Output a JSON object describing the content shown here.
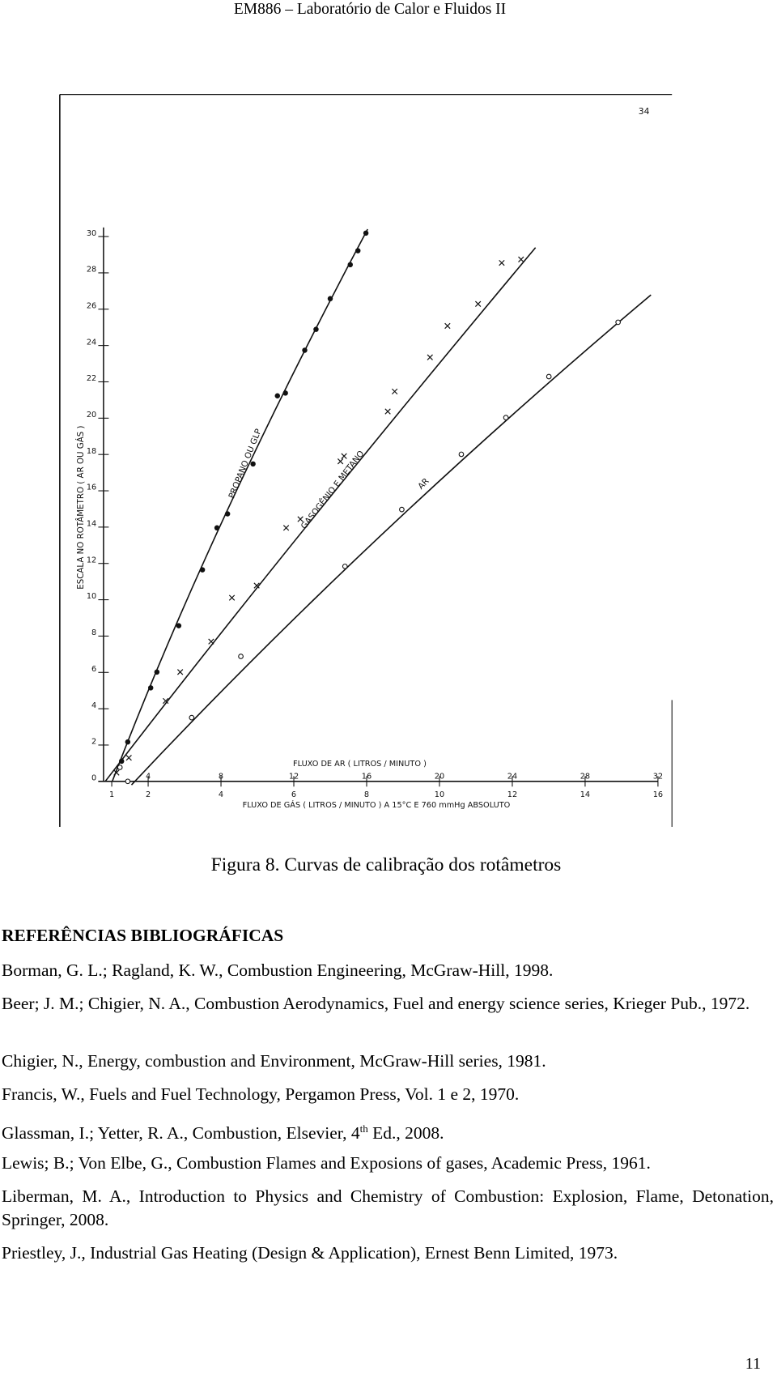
{
  "header": {
    "title": "EM886 – Laboratório de Calor e Fluidos II"
  },
  "chart_data": {
    "type": "scatter",
    "page_label": "34",
    "ylabel": "ESCALA NO ROTÂMETRO ( AR OU GÁS )",
    "xlabel": "FLUXO DE GÁS ( LITROS / MINUTO ) A 15°C E 760 mmHg ABSOLUTO",
    "x2label": "FLUXO DE AR ( LITROS / MINUTO )",
    "xlim": [
      0.75,
      16
    ],
    "xticks": [
      1,
      2,
      4,
      6,
      8,
      10,
      12,
      14,
      16
    ],
    "x2lim": [
      1.5,
      32
    ],
    "x2ticks": [
      4,
      8,
      12,
      16,
      20,
      24,
      28,
      32
    ],
    "ylim": [
      0,
      30.5
    ],
    "yticks": [
      0,
      2,
      4,
      6,
      8,
      10,
      12,
      14,
      16,
      18,
      20,
      22,
      24,
      26,
      28,
      30
    ],
    "color": "#111111",
    "series": [
      {
        "name": "PROPANO OU GLP",
        "marker": "dot",
        "x": [
          1.27,
          1.44,
          2.07,
          2.24,
          2.84,
          3.49,
          3.89,
          4.18,
          4.88,
          5.55,
          5.77,
          6.3,
          6.61,
          7.0,
          7.55,
          7.76,
          7.98
        ],
        "values": [
          1.11,
          2.17,
          5.15,
          6.02,
          8.57,
          11.65,
          13.96,
          14.73,
          17.48,
          21.23,
          21.38,
          23.74,
          24.89,
          26.58,
          28.45,
          29.22,
          30.19
        ]
      },
      {
        "name": "GASOGÊNIO E METANO",
        "marker": "cross",
        "x": [
          1.13,
          1.47,
          2.48,
          2.88,
          3.73,
          4.3,
          4.98,
          5.79,
          6.18,
          7.28,
          7.38,
          8.58,
          8.77,
          9.74,
          10.22,
          11.06,
          11.71,
          12.24
        ],
        "values": [
          0.48,
          1.3,
          4.43,
          6.02,
          7.7,
          10.11,
          10.78,
          13.96,
          14.44,
          17.62,
          17.91,
          20.37,
          21.47,
          23.35,
          25.08,
          26.29,
          28.55,
          28.74
        ]
      },
      {
        "name": "AR",
        "marker": "circle",
        "axis": "x2",
        "x": [
          2.45,
          2.88,
          6.39,
          9.09,
          14.81,
          17.93,
          21.2,
          23.65,
          26.01,
          29.81
        ],
        "values": [
          0.77,
          0,
          3.51,
          6.88,
          11.84,
          14.97,
          18.01,
          20.03,
          22.29,
          25.28
        ]
      }
    ]
  },
  "caption": "Figura 8. Curvas de calibração dos rotâmetros",
  "references": {
    "title": "REFERÊNCIAS BIBLIOGRÁFICAS",
    "items": [
      "Borman, G. L.; Ragland, K. W., Combustion Engineering, McGraw-Hill, 1998.",
      "Beer; J. M.; Chigier, N. A., Combustion Aerodynamics, Fuel and energy science series, Krieger Pub., 1972.",
      "Chigier, N., Energy, combustion and Environment, McGraw-Hill series, 1981.",
      "Francis, W., Fuels and Fuel Technology, Pergamon Press, Vol. 1 e 2, 1970.",
      [
        "Glassman, I.; Yetter, R. A., Combustion, Elsevier, 4",
        "th",
        " Ed., 2008."
      ],
      "Lewis; B.; Von Elbe, G., Combustion Flames and Exposions of gases, Academic Press, 1961.",
      "Liberman, M. A., Introduction to Physics and Chemistry of Combustion: Explosion, Flame, Detonation, Springer, 2008.",
      "Priestley, J., Industrial Gas Heating (Design & Application), Ernest Benn Limited, 1973."
    ]
  },
  "page_number": "11"
}
